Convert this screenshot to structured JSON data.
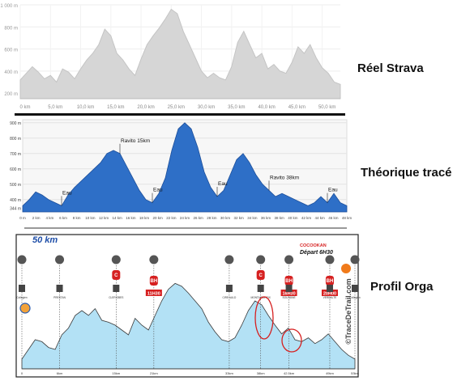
{
  "labels": {
    "strava": "Réel Strava",
    "trace": "Théorique tracé",
    "orga": "Profil Orga"
  },
  "strava": {
    "ylim": [
      150,
      1000
    ],
    "xlim": [
      0,
      53
    ],
    "yticks": [
      "1 000 m",
      "800 m",
      "600 m",
      "400 m",
      "200 m"
    ],
    "ytick_values": [
      1000,
      800,
      600,
      400,
      200
    ],
    "xticks": [
      "0 km",
      "5,0 km",
      "10,0 km",
      "15,0 km",
      "20,0 km",
      "25,0 km",
      "30,0 km",
      "35,0 km",
      "40,0 km",
      "45,0 km",
      "50,0 km"
    ],
    "xtick_values": [
      0,
      5,
      10,
      15,
      20,
      25,
      30,
      35,
      40,
      45,
      50
    ],
    "colors": {
      "fill": "#d6d6d6",
      "line": "#c4c4c4"
    }
  },
  "trace": {
    "ylim": [
      320,
      920
    ],
    "xlim": [
      0,
      50
    ],
    "yticks": [
      "900 m",
      "800 m",
      "700 m",
      "600 m",
      "500 m",
      "400 m",
      "344 m"
    ],
    "ytick_values": [
      900,
      800,
      700,
      600,
      500,
      400,
      344
    ],
    "xticks": [
      "0 m",
      "2 km",
      "4 km",
      "6 km",
      "8 km",
      "10 km",
      "12 km",
      "14 km",
      "16 km",
      "18 km",
      "20 km",
      "22 km",
      "24 km",
      "26 km",
      "28 km",
      "30 km",
      "32 km",
      "34 km",
      "36 km",
      "38 km",
      "40 km",
      "42 km",
      "44 km",
      "46 km",
      "48 km"
    ],
    "annotations": [
      {
        "text": "Eau",
        "x": 6
      },
      {
        "text": "Ravito 15km",
        "x": 15
      },
      {
        "text": "Eau",
        "x": 20
      },
      {
        "text": "Eau",
        "x": 30
      },
      {
        "text": "Ravito 38km",
        "x": 38
      },
      {
        "text": "Eau",
        "x": 47
      }
    ],
    "colors": {
      "fill": "#2e6fc7",
      "line": "#1d4f9a"
    }
  },
  "orga": {
    "banner": "50 km",
    "xlim": [
      0,
      50
    ],
    "xticks": [
      "0",
      "6km",
      "15km",
      "21km",
      "33km",
      "38km",
      "42.5km",
      "49km",
      "53km"
    ],
    "xtick_values": [
      0,
      6,
      15,
      21,
      33,
      38,
      42.5,
      49,
      53
    ],
    "markers": [
      {
        "icon": "water-drop-icon",
        "x": 0,
        "badge": "",
        "place": "Collégien"
      },
      {
        "icon": "water-drop-icon",
        "x": 6,
        "badge": "",
        "place": "PRESTAN"
      },
      {
        "icon": "cutlery-icon",
        "x": 15,
        "badge": "C",
        "place": "CLERIOBES"
      },
      {
        "icon": "water-drop-icon",
        "x": 21,
        "badge": "BH",
        "time": "11H30",
        "place": ""
      },
      {
        "icon": "water-drop-icon",
        "x": 33,
        "badge": "",
        "place": "CIRE AULD"
      },
      {
        "icon": "water-drop-icon",
        "x": 38,
        "badge": "C",
        "place": "MONTAIGUREIX"
      },
      {
        "icon": "cutlery-icon",
        "x": 42.5,
        "badge": "BH",
        "time": "16H30",
        "place": "SOUTAINE"
      },
      {
        "icon": "water-drop-icon",
        "x": 49,
        "badge": "BH",
        "time": "20H00",
        "place": "VERDALTE"
      },
      {
        "icon": "flag-icon",
        "x": 53,
        "badge": "",
        "place": "Collégien"
      }
    ],
    "depart": {
      "title": "COCOOKAN",
      "subtitle": "Départ 6H30"
    },
    "watermark": "©TraceDeTrail.com",
    "colors": {
      "fill": "#b3e1f5",
      "line": "#3a3a3a",
      "badge": "#d62020",
      "circle": "#d62020"
    }
  },
  "chart_data": [
    {
      "type": "area",
      "title": "Réel Strava",
      "xlabel": "",
      "ylabel": "",
      "xlim": [
        0,
        53
      ],
      "ylim": [
        150,
        1000
      ],
      "grid": true,
      "x": [
        0,
        1,
        2,
        3,
        4,
        5,
        6,
        7,
        8,
        9,
        10,
        11,
        12,
        13,
        14,
        15,
        16,
        17,
        18,
        19,
        20,
        21,
        22,
        23,
        24,
        25,
        26,
        27,
        28,
        29,
        30,
        31,
        32,
        33,
        34,
        35,
        36,
        37,
        38,
        39,
        40,
        41,
        42,
        43,
        44,
        45,
        46,
        47,
        48,
        49,
        50,
        51,
        52,
        53
      ],
      "series": [
        {
          "values": [
            320,
            380,
            440,
            390,
            330,
            360,
            300,
            420,
            390,
            330,
            420,
            500,
            560,
            640,
            780,
            720,
            560,
            500,
            420,
            360,
            510,
            640,
            720,
            790,
            870,
            960,
            920,
            760,
            640,
            520,
            400,
            340,
            380,
            340,
            320,
            440,
            660,
            760,
            640,
            520,
            560,
            420,
            460,
            400,
            380,
            480,
            620,
            560,
            640,
            520,
            430,
            380,
            300,
            280
          ]
        }
      ]
    },
    {
      "type": "area",
      "title": "Théorique tracé",
      "xlabel": "",
      "ylabel": "",
      "xlim": [
        0,
        50
      ],
      "ylim": [
        320,
        920
      ],
      "grid": true,
      "x": [
        0,
        1,
        2,
        3,
        4,
        5,
        6,
        7,
        8,
        9,
        10,
        11,
        12,
        13,
        14,
        15,
        16,
        17,
        18,
        19,
        20,
        21,
        22,
        23,
        24,
        25,
        26,
        27,
        28,
        29,
        30,
        31,
        32,
        33,
        34,
        35,
        36,
        37,
        38,
        39,
        40,
        41,
        42,
        43,
        44,
        45,
        46,
        47,
        48,
        49,
        50
      ],
      "series": [
        {
          "values": [
            360,
            400,
            450,
            430,
            400,
            380,
            360,
            430,
            480,
            520,
            560,
            600,
            640,
            700,
            720,
            700,
            620,
            540,
            460,
            400,
            380,
            440,
            540,
            720,
            860,
            900,
            860,
            740,
            580,
            480,
            420,
            460,
            560,
            660,
            700,
            640,
            560,
            500,
            460,
            420,
            440,
            420,
            400,
            380,
            360,
            380,
            420,
            380,
            440,
            380,
            360
          ]
        }
      ]
    },
    {
      "type": "area",
      "title": "Profil Orga",
      "xlabel": "",
      "ylabel": "",
      "xlim": [
        0,
        50
      ],
      "ylim": [
        0,
        100
      ],
      "grid": false,
      "x": [
        0,
        1,
        2,
        3,
        4,
        5,
        6,
        7,
        8,
        9,
        10,
        11,
        12,
        13,
        14,
        15,
        16,
        17,
        18,
        19,
        20,
        21,
        22,
        23,
        24,
        25,
        26,
        27,
        28,
        29,
        30,
        31,
        32,
        33,
        34,
        35,
        36,
        37,
        38,
        39,
        40,
        41,
        42,
        43,
        44,
        45,
        46,
        47,
        48,
        49,
        50
      ],
      "series": [
        {
          "values": [
            10,
            20,
            30,
            28,
            22,
            20,
            35,
            42,
            55,
            60,
            55,
            62,
            50,
            48,
            45,
            40,
            35,
            52,
            45,
            40,
            55,
            70,
            82,
            88,
            85,
            78,
            70,
            62,
            48,
            38,
            30,
            28,
            32,
            45,
            60,
            70,
            66,
            55,
            45,
            36,
            42,
            30,
            28,
            32,
            26,
            30,
            36,
            28,
            20,
            14,
            10
          ]
        }
      ]
    }
  ]
}
